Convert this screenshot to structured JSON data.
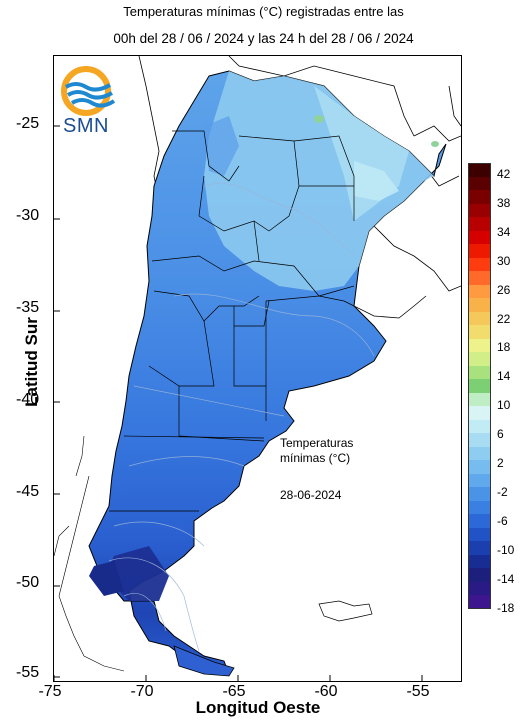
{
  "title": {
    "line1": "Temperaturas mínimas (°C) registradas entre las",
    "line2": "00h del 28 / 06 / 2024 y las 24 h del 28 / 06 / 2024"
  },
  "logo": {
    "name": "smn-logo",
    "text": "SMN"
  },
  "axes": {
    "ylabel": "Latitud Sur",
    "xlabel": "Longitud Oeste",
    "yticks": [
      "-25",
      "-30",
      "-35",
      "-40",
      "-45",
      "-50",
      "-55"
    ],
    "xticks": [
      "-75",
      "-70",
      "-65",
      "-60",
      "-55"
    ],
    "lon_range": [
      -75,
      -53
    ],
    "lat_range": [
      -55,
      -21
    ]
  },
  "annotation": {
    "line1": "Temperaturas",
    "line2": "mínimas (°C)",
    "date": "28-06-2024"
  },
  "legend": {
    "labels": [
      "42",
      "38",
      "34",
      "30",
      "26",
      "22",
      "18",
      "14",
      "10",
      "6",
      "2",
      "-2",
      "-6",
      "-10",
      "-14",
      "-18"
    ],
    "colors": [
      "#3d0000",
      "#5a0000",
      "#7a0000",
      "#990000",
      "#b80000",
      "#d60000",
      "#ee1a00",
      "#ff3b10",
      "#ff6a2a",
      "#ff9a40",
      "#f9b14a",
      "#f5c85c",
      "#f2dc6e",
      "#eef28a",
      "#d2ee88",
      "#a8e27f",
      "#7ccf72",
      "#bfeec4",
      "#d8f4f4",
      "#c2ecf5",
      "#a8dcf2",
      "#8fcdf0",
      "#77bcee",
      "#5fa9ec",
      "#4a94e8",
      "#3a7fe2",
      "#2c68d8",
      "#2253c6",
      "#1b3fae",
      "#182d94",
      "#1d1f7c",
      "#2a1a86",
      "#3d158f"
    ]
  }
}
